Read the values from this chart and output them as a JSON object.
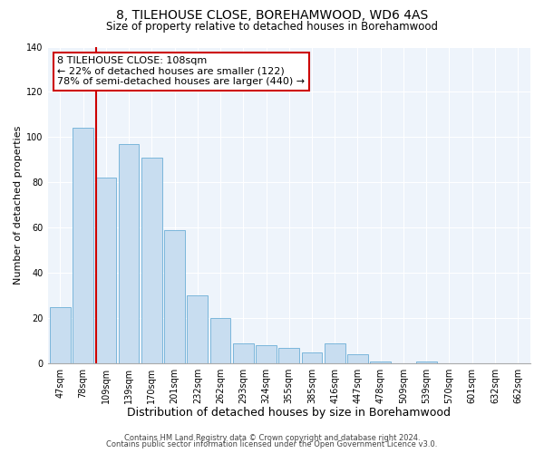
{
  "title": "8, TILEHOUSE CLOSE, BOREHAMWOOD, WD6 4AS",
  "subtitle": "Size of property relative to detached houses in Borehamwood",
  "xlabel": "Distribution of detached houses by size in Borehamwood",
  "ylabel": "Number of detached properties",
  "bar_labels": [
    "47sqm",
    "78sqm",
    "109sqm",
    "139sqm",
    "170sqm",
    "201sqm",
    "232sqm",
    "262sqm",
    "293sqm",
    "324sqm",
    "355sqm",
    "385sqm",
    "416sqm",
    "447sqm",
    "478sqm",
    "509sqm",
    "539sqm",
    "570sqm",
    "601sqm",
    "632sqm",
    "662sqm"
  ],
  "bar_values": [
    25,
    104,
    82,
    97,
    91,
    59,
    30,
    20,
    9,
    8,
    7,
    5,
    9,
    4,
    1,
    0,
    1,
    0,
    0,
    0,
    0
  ],
  "bar_color": "#c8ddf0",
  "bar_edge_color": "#6baed6",
  "vline_color": "#cc0000",
  "annotation_line1": "8 TILEHOUSE CLOSE: 108sqm",
  "annotation_line2": "← 22% of detached houses are smaller (122)",
  "annotation_line3": "78% of semi-detached houses are larger (440) →",
  "annotation_box_color": "#ffffff",
  "annotation_border_color": "#cc0000",
  "ylim": [
    0,
    140
  ],
  "yticks": [
    0,
    20,
    40,
    60,
    80,
    100,
    120,
    140
  ],
  "footer1": "Contains HM Land Registry data © Crown copyright and database right 2024.",
  "footer2": "Contains public sector information licensed under the Open Government Licence v3.0.",
  "title_fontsize": 10,
  "subtitle_fontsize": 8.5,
  "xlabel_fontsize": 9,
  "ylabel_fontsize": 8,
  "tick_fontsize": 7,
  "annotation_fontsize": 8,
  "footer_fontsize": 6,
  "plot_bg_color": "#eef4fb",
  "fig_bg_color": "#ffffff"
}
